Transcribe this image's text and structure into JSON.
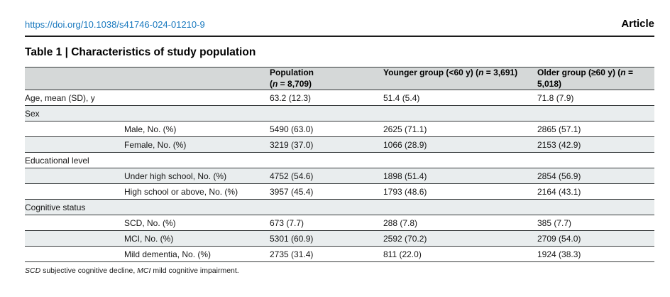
{
  "header": {
    "doi": "https://doi.org/10.1038/s41746-024-01210-9",
    "article_label": "Article"
  },
  "table": {
    "title": "Table 1 | Characteristics of study population",
    "columns": [
      {
        "key": "rowlabel",
        "parts": []
      },
      {
        "key": "population",
        "parts": [
          {
            "t": "Population"
          },
          {
            "br": true
          },
          {
            "t": "("
          },
          {
            "t": "n",
            "i": true
          },
          {
            "t": " = 8,709)"
          }
        ]
      },
      {
        "key": "younger",
        "parts": [
          {
            "t": "Younger group (<60 y) ("
          },
          {
            "t": "n",
            "i": true
          },
          {
            "t": " = 3,691)"
          }
        ]
      },
      {
        "key": "older",
        "parts": [
          {
            "t": "Older group (≥60 y) ("
          },
          {
            "t": "n",
            "i": true
          },
          {
            "t": " = 5,018)"
          }
        ]
      }
    ],
    "rows": [
      {
        "type": "data",
        "indent": 0,
        "shade": false,
        "label": "Age, mean (SD), y",
        "values": [
          "63.2 (12.3)",
          "51.4 (5.4)",
          "71.8 (7.9)"
        ]
      },
      {
        "type": "section",
        "shade": true,
        "label": "Sex"
      },
      {
        "type": "data",
        "indent": 1,
        "shade": false,
        "label": "Male, No. (%)",
        "values": [
          "5490 (63.0)",
          "2625 (71.1)",
          "2865 (57.1)"
        ]
      },
      {
        "type": "data",
        "indent": 1,
        "shade": true,
        "label": "Female, No. (%)",
        "values": [
          "3219 (37.0)",
          "1066 (28.9)",
          "2153 (42.9)"
        ]
      },
      {
        "type": "section",
        "shade": false,
        "label": "Educational level"
      },
      {
        "type": "data",
        "indent": 1,
        "shade": true,
        "label": "Under high school, No. (%)",
        "values": [
          "4752 (54.6)",
          "1898 (51.4)",
          "2854 (56.9)"
        ]
      },
      {
        "type": "data",
        "indent": 1,
        "shade": false,
        "label": "High school or above, No. (%)",
        "values": [
          "3957 (45.4)",
          "1793 (48.6)",
          "2164 (43.1)"
        ]
      },
      {
        "type": "section",
        "shade": true,
        "label": "Cognitive status"
      },
      {
        "type": "data",
        "indent": 1,
        "shade": false,
        "label": "SCD, No. (%)",
        "values": [
          "673 (7.7)",
          "288 (7.8)",
          "385 (7.7)"
        ]
      },
      {
        "type": "data",
        "indent": 1,
        "shade": true,
        "label": "MCI, No. (%)",
        "values": [
          "5301 (60.9)",
          "2592 (70.2)",
          "2709 (54.0)"
        ]
      },
      {
        "type": "data",
        "indent": 1,
        "shade": false,
        "label": "Mild dementia, No. (%)",
        "values": [
          "2735 (31.4)",
          "811 (22.0)",
          "1924 (38.3)"
        ]
      }
    ],
    "footnote_parts": [
      {
        "t": "SCD",
        "i": true
      },
      {
        "t": " subjective cognitive decline, "
      },
      {
        "t": "MCI",
        "i": true
      },
      {
        "t": " mild cognitive impairment."
      }
    ]
  },
  "colors": {
    "link_blue": "#1878be",
    "header_band_gray": "#d5d8d8",
    "row_stripe_gray": "#e9edee",
    "rule_dark": "#35393a"
  }
}
